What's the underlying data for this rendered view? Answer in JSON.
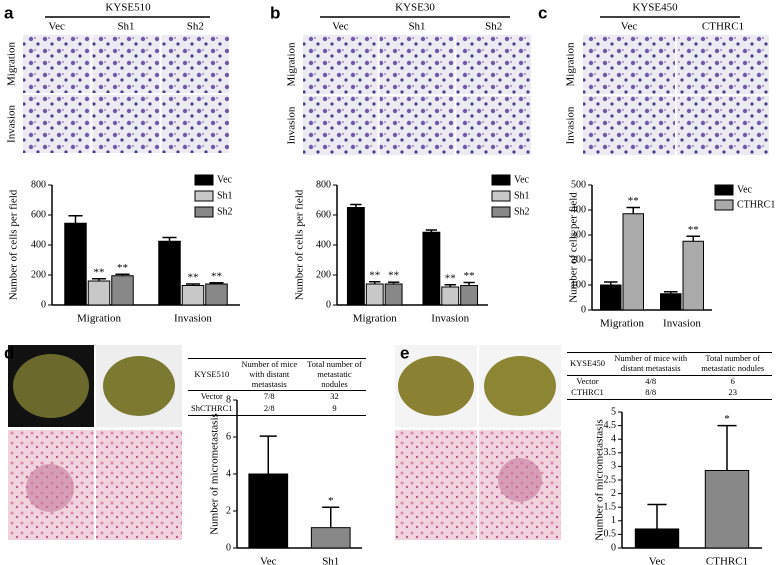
{
  "panels": [
    {
      "label": "a",
      "title": "KYSE510",
      "columns": [
        "Vec",
        "Sh1",
        "Sh2"
      ],
      "rows": [
        "Migration",
        "Invasion"
      ]
    },
    {
      "label": "b",
      "title": "KYSE30",
      "columns": [
        "Vec",
        "Sh1",
        "Sh2"
      ],
      "rows": [
        "Migration",
        "Invasion"
      ]
    },
    {
      "label": "c",
      "title": "KYSE450",
      "columns": [
        "Vec",
        "CTHRC1"
      ],
      "rows": [
        "Migration",
        "Invasion"
      ]
    },
    {
      "label": "d",
      "table": {
        "header": [
          "KYSE510",
          "Number of mice with distant metastasis",
          "Total number of metastatic nodules"
        ],
        "rows": [
          [
            "Vector",
            "7/8",
            "32"
          ],
          [
            "ShCTHRC1",
            "2/8",
            "9"
          ]
        ]
      }
    },
    {
      "label": "e",
      "table": {
        "header": [
          "KYSE450",
          "Number of mice with distant metastasis",
          "Total number of metastatic nodules"
        ],
        "rows": [
          [
            "Vector",
            "4/8",
            "6"
          ],
          [
            "CTHRC1",
            "8/8",
            "23"
          ]
        ]
      }
    }
  ],
  "chart_data": [
    {
      "type": "bar",
      "y_label": "Number of cells per field",
      "categories": [
        "Migration",
        "Invasion"
      ],
      "series": [
        {
          "name": "Vec",
          "color": "#000000",
          "values": [
            545,
            425
          ],
          "errors": [
            50,
            25
          ]
        },
        {
          "name": "Sh1",
          "color": "#c8c8c8",
          "values": [
            160,
            130
          ],
          "errors": [
            15,
            10
          ],
          "significance": [
            "**",
            "**"
          ]
        },
        {
          "name": "Sh2",
          "color": "#888888",
          "values": [
            195,
            140
          ],
          "errors": [
            10,
            8
          ],
          "significance": [
            "**",
            "**"
          ]
        }
      ],
      "ylim": [
        0,
        800
      ],
      "yticks": [
        0,
        200,
        400,
        600,
        800
      ]
    },
    {
      "type": "bar",
      "y_label": "Number of cells per field",
      "categories": [
        "Migration",
        "Invasion"
      ],
      "series": [
        {
          "name": "Vec",
          "color": "#000000",
          "values": [
            650,
            485
          ],
          "errors": [
            20,
            15
          ]
        },
        {
          "name": "Sh1",
          "color": "#c8c8c8",
          "values": [
            140,
            120
          ],
          "errors": [
            15,
            15
          ],
          "significance": [
            "**",
            "**"
          ]
        },
        {
          "name": "Sh2",
          "color": "#888888",
          "values": [
            140,
            130
          ],
          "errors": [
            12,
            20
          ],
          "significance": [
            "**",
            "**"
          ]
        }
      ],
      "ylim": [
        0,
        800
      ],
      "yticks": [
        0,
        200,
        400,
        600,
        800
      ]
    },
    {
      "type": "bar",
      "y_label": "Number of cells per field",
      "categories": [
        "Migration",
        "Invasion"
      ],
      "series": [
        {
          "name": "Vec",
          "color": "#000000",
          "values": [
            100,
            65
          ],
          "errors": [
            12,
            8
          ]
        },
        {
          "name": "CTHRC1",
          "color": "#aaaaaa",
          "values": [
            385,
            275
          ],
          "errors": [
            25,
            20
          ],
          "significance": [
            "**",
            "**"
          ]
        }
      ],
      "ylim": [
        0,
        500
      ],
      "yticks": [
        0,
        100,
        200,
        300,
        400,
        500
      ]
    },
    {
      "type": "bar",
      "y_label": "Number of micrometastasis",
      "categories": [
        "Vec",
        "Sh1"
      ],
      "values": [
        4.0,
        1.1
      ],
      "errors": [
        2.05,
        1.1
      ],
      "colors": [
        "#000000",
        "#888888"
      ],
      "significance": [
        null,
        "*"
      ],
      "ylim": [
        0,
        8
      ],
      "yticks": [
        0,
        2,
        4,
        6,
        8
      ]
    },
    {
      "type": "bar",
      "y_label": "Number of micrometastasis",
      "categories": [
        "Vec",
        "CTHRC1"
      ],
      "values": [
        0.7,
        2.85
      ],
      "errors": [
        0.9,
        1.65
      ],
      "colors": [
        "#000000",
        "#888888"
      ],
      "significance": [
        null,
        "*"
      ],
      "ylim": [
        0,
        5
      ],
      "yticks": [
        0,
        0.5,
        1,
        1.5,
        2,
        2.5,
        3,
        3.5,
        4,
        4.5,
        5
      ]
    }
  ]
}
